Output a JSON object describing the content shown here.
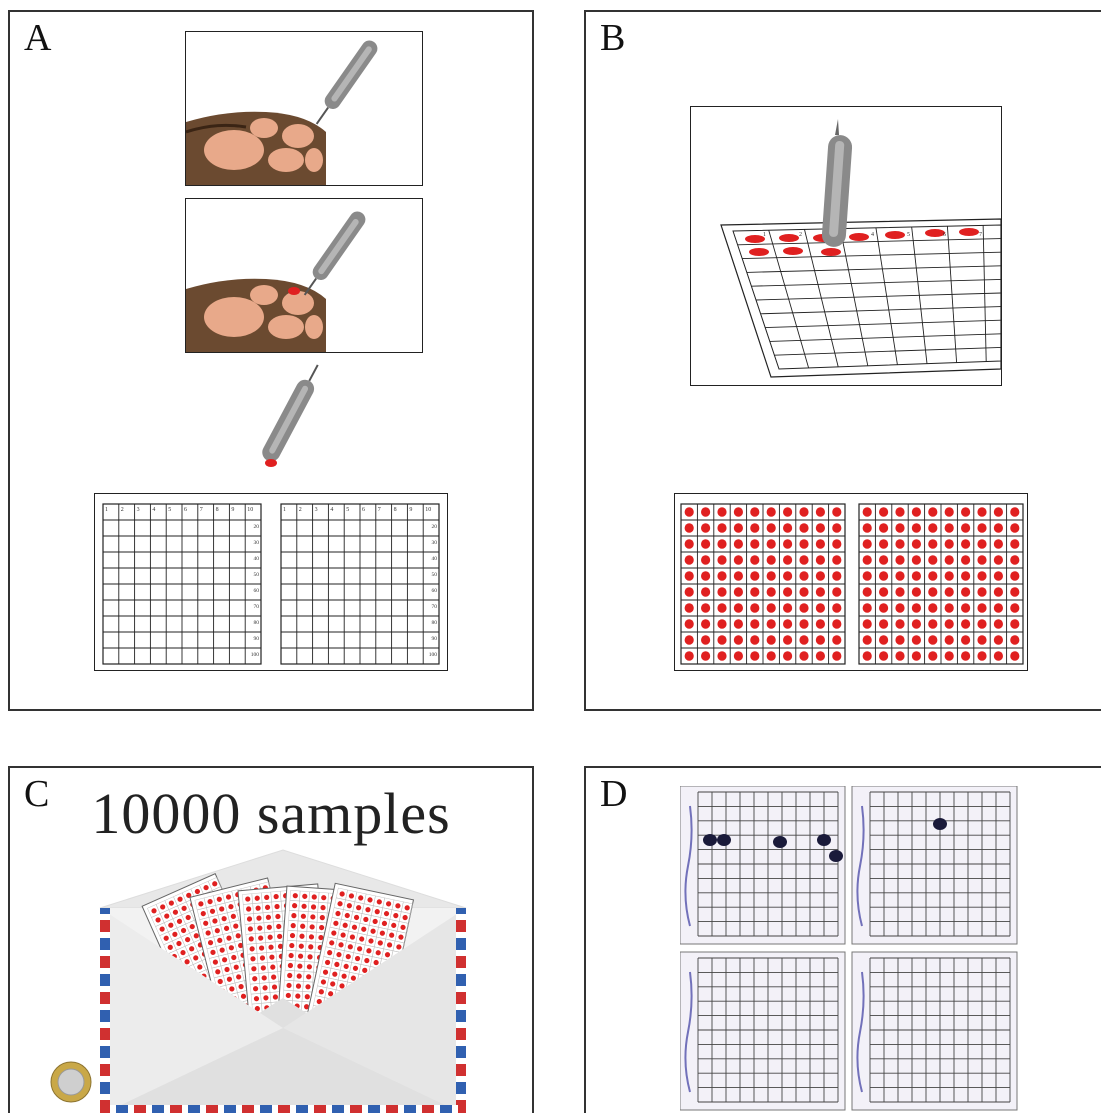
{
  "panels": {
    "a": {
      "letter": "A"
    },
    "b": {
      "letter": "B"
    },
    "c": {
      "letter": "C",
      "title": "10000 samples"
    },
    "d": {
      "letter": "D"
    }
  },
  "grid": {
    "col_labels": [
      "1",
      "2",
      "3",
      "4",
      "5",
      "6",
      "7",
      "8",
      "9",
      "10"
    ],
    "row_labels": [
      "20",
      "30",
      "40",
      "50",
      "60",
      "70",
      "80",
      "90",
      "100"
    ]
  },
  "colors": {
    "blood": "#e02020",
    "pen": "#8a8a8a",
    "ink": "#2a2a6a"
  }
}
